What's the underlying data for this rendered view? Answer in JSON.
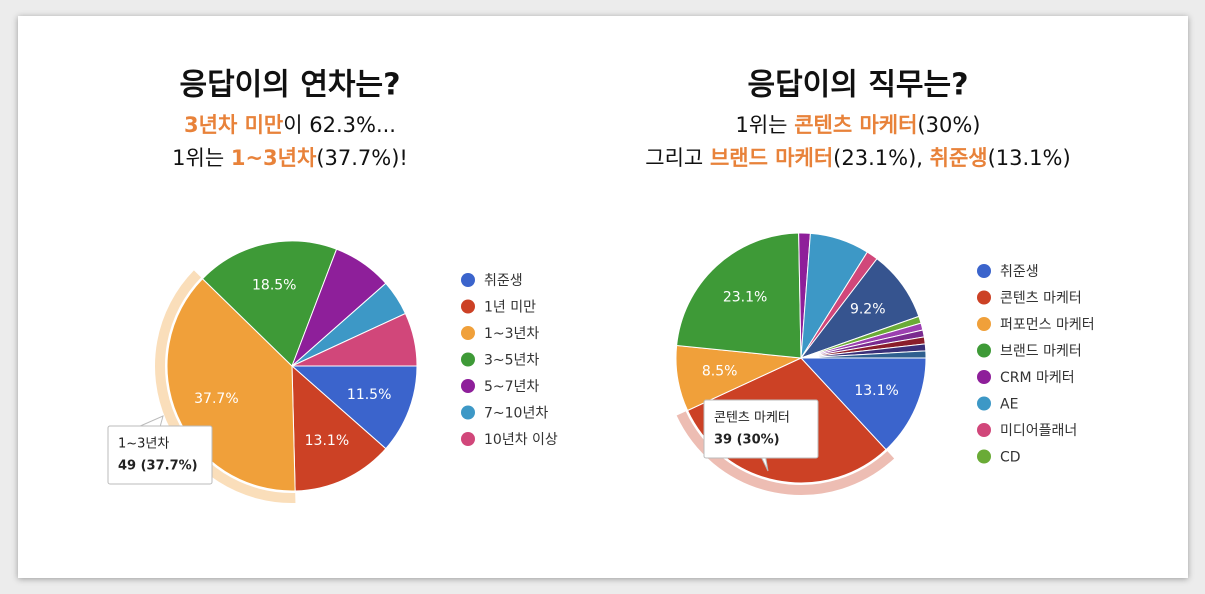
{
  "chart_data": [
    {
      "type": "pie",
      "title": "응답이의 연차는?",
      "subtitle": [
        [
          {
            "text": "3년차 미만",
            "color": "#e8823a"
          },
          {
            "text": "이 62.3%..."
          }
        ],
        [
          {
            "text": "1위는 "
          },
          {
            "text": "1~3년차",
            "color": "#e8823a"
          },
          {
            "text": "(37.7%)!"
          }
        ]
      ],
      "categories": [
        "취준생",
        "1년 미만",
        "1~3년차",
        "3~5년차",
        "5~7년차",
        "7~10년차",
        "10년차 이상"
      ],
      "values": [
        11.5,
        13.1,
        37.7,
        18.5,
        7.7,
        4.6,
        6.9
      ],
      "value_labels": [
        "11.5%",
        "13.1%",
        "37.7%",
        "18.5%",
        null,
        null,
        null
      ],
      "colors": [
        "#3b64cc",
        "#cc4125",
        "#f0a03a",
        "#3e9a37",
        "#8e1f9a",
        "#3d98c6",
        "#d1477a"
      ],
      "tooltip": {
        "label": "1~3년차",
        "text": "49 (37.7%)"
      }
    },
    {
      "type": "pie",
      "title": "응답이의 직무는?",
      "subtitle": [
        [
          {
            "text": "1위는 "
          },
          {
            "text": "콘텐츠 마케터",
            "color": "#e8823a"
          },
          {
            "text": "(30%)"
          }
        ],
        [
          {
            "text": "그리고 "
          },
          {
            "text": "브랜드 마케터",
            "color": "#e8823a"
          },
          {
            "text": "(23.1%), "
          },
          {
            "text": "취준생",
            "color": "#e8823a"
          },
          {
            "text": "(13.1%)"
          }
        ]
      ],
      "categories": [
        "취준생",
        "콘텐츠 마케터",
        "퍼포먼스 마케터",
        "브랜드 마케터",
        "CRM 마케터",
        "AE",
        "미디어플래너",
        null,
        "CD",
        null,
        null,
        null,
        null,
        null
      ],
      "values": [
        13.1,
        30,
        8.5,
        23.1,
        1.5,
        7.7,
        1.5,
        9.2,
        0.9,
        0.9,
        0.9,
        0.9,
        0.9,
        0.9
      ],
      "value_labels": [
        "13.1%",
        null,
        "8.5%",
        "23.1%",
        null,
        null,
        null,
        "9.2%",
        null,
        null,
        null,
        null,
        null,
        null
      ],
      "colors": [
        "#3b64cc",
        "#cc4125",
        "#f0a03a",
        "#3e9a37",
        "#8e1f9a",
        "#3d98c6",
        "#d1477a",
        "#36548f",
        "#6aab36",
        "#9c3fb0",
        "#7a2a8f",
        "#8a1d2b",
        "#3a2f78",
        "#2f5f8f"
      ],
      "tooltip": {
        "label": "콘텐츠 마케터",
        "text": "39 (30%)"
      }
    }
  ]
}
